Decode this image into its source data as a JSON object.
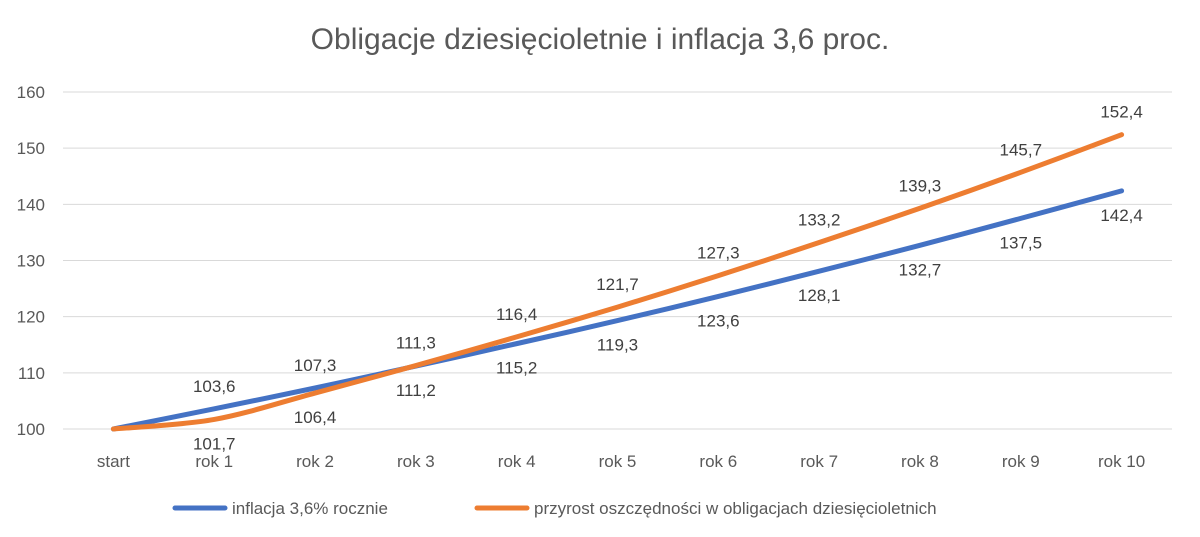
{
  "chart_data": {
    "type": "line",
    "title": "Obligacje dziesięcioletnie i inflacja 3,6 proc.",
    "categories": [
      "start",
      "rok 1",
      "rok 2",
      "rok 3",
      "rok 4",
      "rok 5",
      "rok 6",
      "rok 7",
      "rok 8",
      "rok 9",
      "rok 10"
    ],
    "ylim": [
      100,
      160
    ],
    "yticks": [
      "100",
      "110",
      "120",
      "130",
      "140",
      "150",
      "160"
    ],
    "grid": true,
    "legend_position": "bottom",
    "series": [
      {
        "name": "inflacja 3,6% rocznie",
        "color": "#4472c4",
        "values": [
          100,
          103.6,
          107.3,
          111.2,
          115.2,
          119.3,
          123.6,
          128.1,
          132.7,
          137.5,
          142.4
        ],
        "labels": [
          "",
          "103,6",
          "107,3",
          "111,2",
          "115,2",
          "119,3",
          "123,6",
          "128,1",
          "132,7",
          "137,5",
          "142,4"
        ]
      },
      {
        "name": "przyrost oszczędności w obligacjach dziesięcioletnich",
        "color": "#ed7d31",
        "values": [
          100,
          101.7,
          106.4,
          111.3,
          116.4,
          121.7,
          127.3,
          133.2,
          139.3,
          145.7,
          152.4
        ],
        "labels": [
          "",
          "101,7",
          "106,4",
          "111,3",
          "116,4",
          "121,7",
          "127,3",
          "133,2",
          "139,3",
          "145,7",
          "152,4"
        ]
      }
    ]
  }
}
